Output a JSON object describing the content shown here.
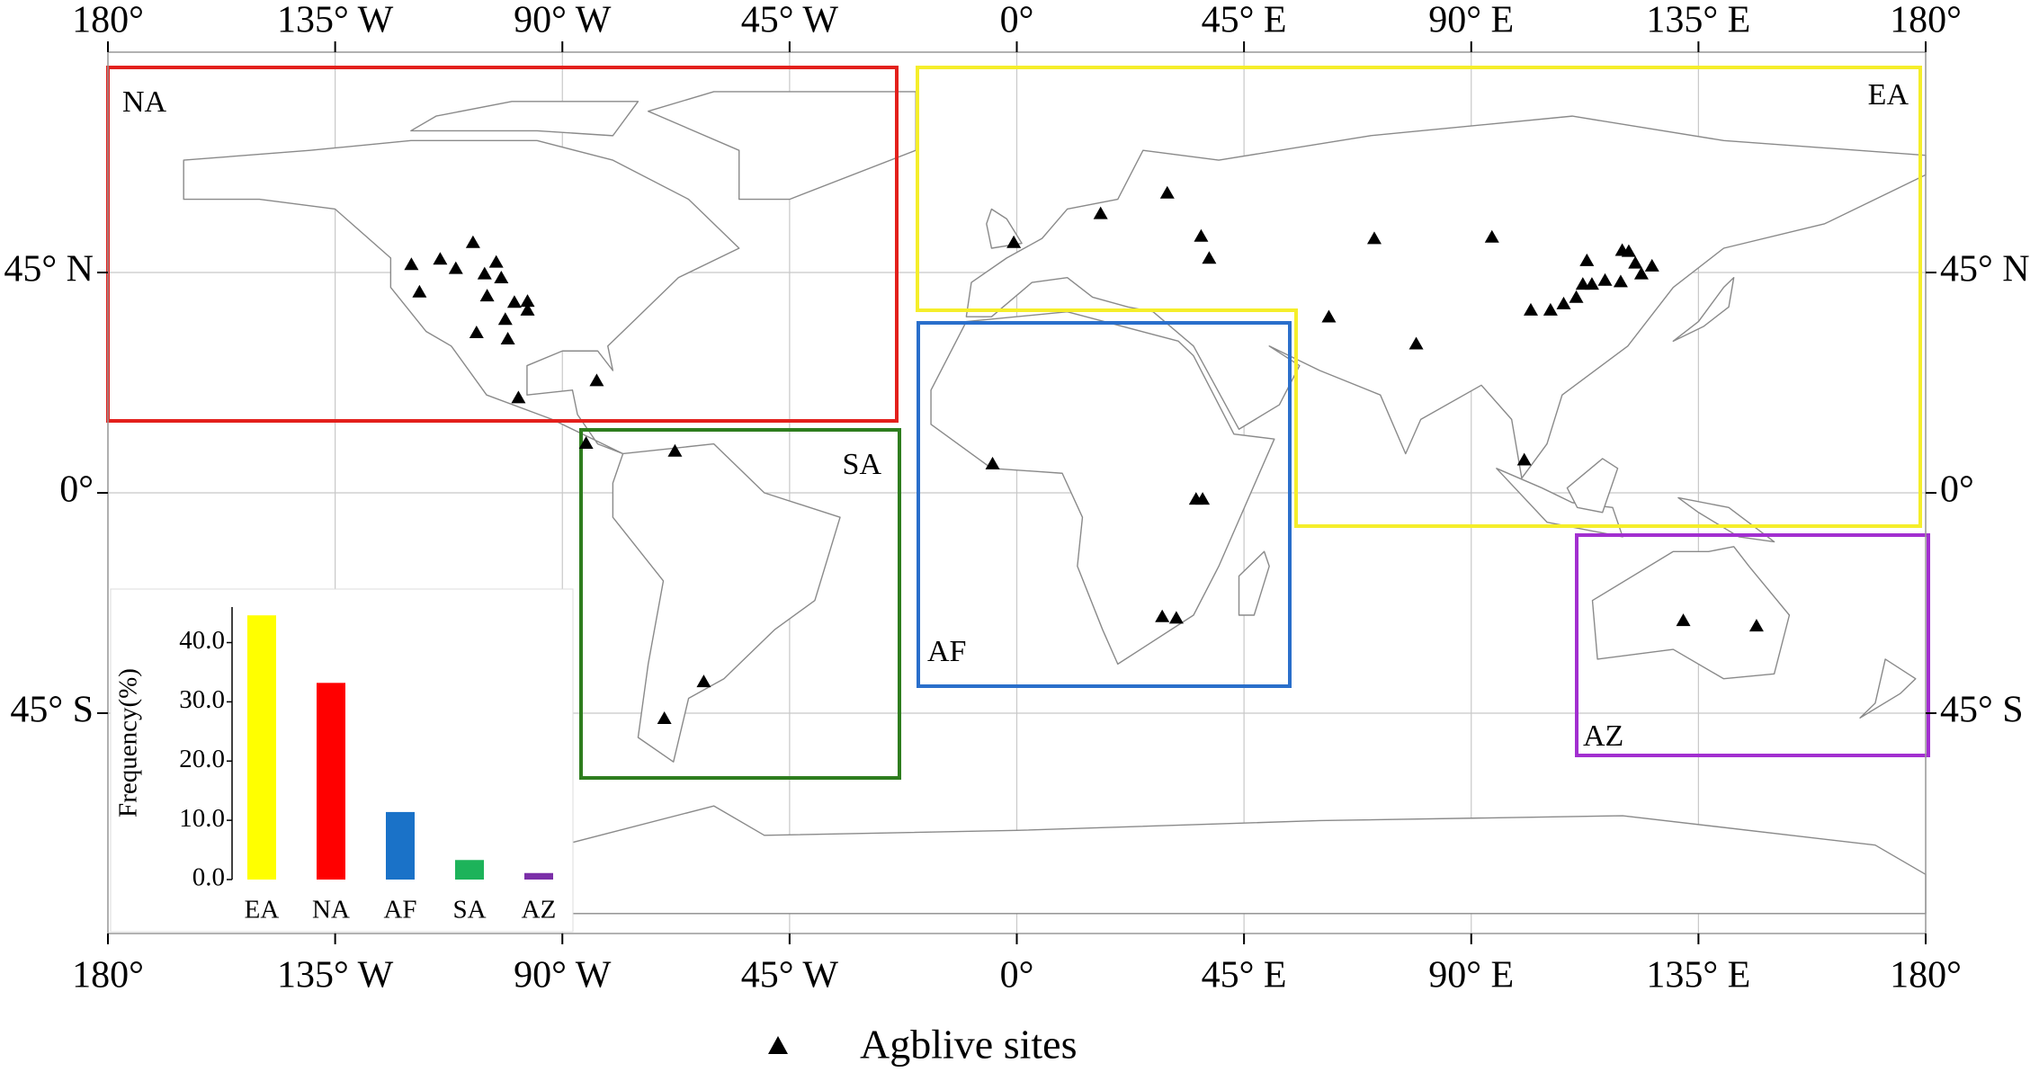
{
  "map": {
    "xlim": [
      -180,
      180
    ],
    "ylim": [
      -90,
      90
    ],
    "xticks": [
      {
        "value": -180,
        "label": "180°"
      },
      {
        "value": -135,
        "label": "135° W"
      },
      {
        "value": -90,
        "label": "90° W"
      },
      {
        "value": -45,
        "label": "45° W"
      },
      {
        "value": 0,
        "label": "0°"
      },
      {
        "value": 45,
        "label": "45° E"
      },
      {
        "value": 90,
        "label": "90° E"
      },
      {
        "value": 135,
        "label": "135° E"
      },
      {
        "value": 180,
        "label": "180°"
      }
    ],
    "yticks": [
      {
        "value": 45,
        "label": "45° N"
      },
      {
        "value": 0,
        "label": "0°"
      },
      {
        "value": -45,
        "label": "45° S"
      }
    ],
    "regions": [
      {
        "label": "NA",
        "color": "#e3201c"
      },
      {
        "label": "EA",
        "color": "#f5ee2a"
      },
      {
        "label": "SA",
        "color": "#2e7d1e"
      },
      {
        "label": "AF",
        "color": "#2a6fcb"
      },
      {
        "label": "AZ",
        "color": "#a22fd0"
      }
    ],
    "sites": {
      "name": "Agblive sites",
      "lon": [
        -119.9,
        -114.2,
        -107.7,
        -111.1,
        -118.3,
        -105.4,
        -103.1,
        -102.1,
        -104.9,
        -101.3,
        -99.5,
        -96.9,
        -96.9,
        -107,
        -100.8,
        -98.7,
        -83.2,
        -85.3,
        -67.7,
        -62,
        -69.8,
        -4.8,
        35.5,
        36.8,
        28.8,
        31.6,
        -0.6,
        16.6,
        29.8,
        36.5,
        38.1,
        61.8,
        70.8,
        79.1,
        94.1,
        100.5,
        101.8,
        105.7,
        108.3,
        110.8,
        112.1,
        113.9,
        116.5,
        119.9,
        121.2,
        122.5,
        123.7,
        125.8,
        112.9,
        119.6,
        132,
        146.5
      ],
      "lat": [
        46.6,
        47.7,
        51.1,
        45.8,
        41,
        44.7,
        47.1,
        43.9,
        40.2,
        35.4,
        38.9,
        39.1,
        37.3,
        32.7,
        31.4,
        19.4,
        22.9,
        10.1,
        8.5,
        -38.6,
        -46.1,
        5.9,
        -1.3,
        -1.3,
        -25.3,
        -25.6,
        51.1,
        57,
        61.2,
        52.4,
        47.9,
        35.9,
        51.9,
        30.4,
        52.2,
        6.7,
        37.3,
        37.3,
        38.6,
        39.9,
        42.6,
        42.6,
        43.4,
        49.5,
        49.3,
        46.9,
        44.7,
        46.3,
        47.4,
        43.1,
        -26.1,
        -27.2
      ]
    }
  },
  "chart_data": {
    "type": "bar",
    "y_label": "Frequency(%)",
    "categories": [
      "EA",
      "NA",
      "AF",
      "SA",
      "AZ"
    ],
    "values": [
      44.6,
      33.2,
      11.4,
      3.3,
      1.1
    ],
    "colors": [
      "#ffff00",
      "#ff0000",
      "#1a72c8",
      "#1db35a",
      "#7b2fa8"
    ],
    "ylim": [
      0,
      46
    ],
    "yticks": [
      {
        "value": 0,
        "label": "0.0"
      },
      {
        "value": 10,
        "label": "10.0"
      },
      {
        "value": 20,
        "label": "20.0"
      },
      {
        "value": 30,
        "label": "30.0"
      },
      {
        "value": 40,
        "label": "40.0"
      }
    ]
  }
}
